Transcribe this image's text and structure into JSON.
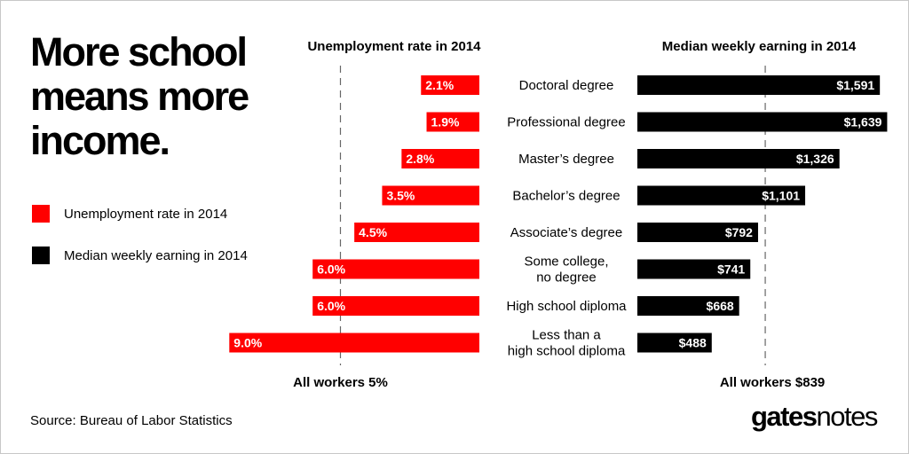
{
  "title_lines": [
    "More school",
    "means more",
    "income."
  ],
  "legend": [
    {
      "label": "Unemployment rate in 2014",
      "color": "#ff0000"
    },
    {
      "label": "Median weekly earning in 2014",
      "color": "#000000"
    }
  ],
  "source": "Source: Bureau of Labor Statistics",
  "brand": {
    "bold": "gates",
    "light": "notes"
  },
  "chart_data": [
    {
      "type": "bar",
      "orientation": "horizontal",
      "title": "Unemployment rate in 2014",
      "categories": [
        [
          "Doctoral degree"
        ],
        [
          "Professional degree"
        ],
        [
          "Master’s degree"
        ],
        [
          "Bachelor’s degree"
        ],
        [
          "Associate’s degree"
        ],
        [
          "Some college,",
          "no degree"
        ],
        [
          "High school diploma"
        ],
        [
          "Less than a",
          "high school diploma"
        ]
      ],
      "values": [
        2.1,
        1.9,
        2.8,
        3.5,
        4.5,
        6.0,
        6.0,
        9.0
      ],
      "value_labels": [
        "2.1%",
        "1.9%",
        "2.8%",
        "3.5%",
        "4.5%",
        "6.0%",
        "6.0%",
        "9.0%"
      ],
      "reference_value": 5,
      "reference_label": "All workers 5%",
      "color": "#ff0000"
    },
    {
      "type": "bar",
      "orientation": "horizontal",
      "title": "Median weekly earning in 2014",
      "categories": [
        [
          "Doctoral degree"
        ],
        [
          "Professional degree"
        ],
        [
          "Master’s degree"
        ],
        [
          "Bachelor’s degree"
        ],
        [
          "Associate’s degree"
        ],
        [
          "Some college,",
          "no degree"
        ],
        [
          "High school diploma"
        ],
        [
          "Less than a",
          "high school diploma"
        ]
      ],
      "values": [
        1591,
        1639,
        1326,
        1101,
        792,
        741,
        668,
        488
      ],
      "value_labels": [
        "$1,591",
        "$1,639",
        "$1,326",
        "$1,101",
        "$792",
        "$741",
        "$668",
        "$488"
      ],
      "reference_value": 839,
      "reference_label": "All workers $839",
      "color": "#000000"
    }
  ]
}
